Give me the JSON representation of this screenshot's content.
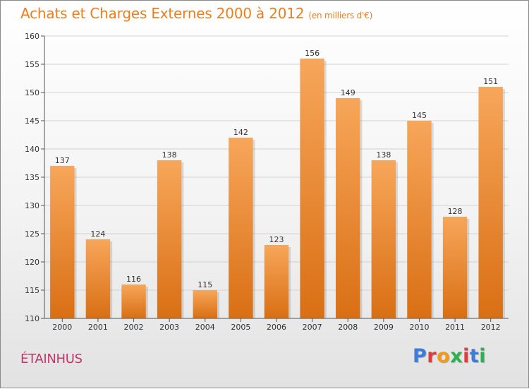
{
  "header": {
    "title": "Achats et Charges Externes 2000 à 2012",
    "unit": "(en milliers d'€)"
  },
  "footer": {
    "commune": "ÉTAINHUS",
    "logo_text": "Proxiti"
  },
  "colors": {
    "accent": "#ef7e1a",
    "bar_top": "#f7a65a",
    "bar_bottom": "#d96f14",
    "commune": "#c0386b"
  },
  "chart_data": {
    "type": "bar",
    "title": "Achats et Charges Externes 2000 à 2012",
    "subtitle": "(en milliers d'€)",
    "categories": [
      "2000",
      "2001",
      "2002",
      "2003",
      "2004",
      "2005",
      "2006",
      "2007",
      "2008",
      "2009",
      "2010",
      "2011",
      "2012"
    ],
    "values": [
      137,
      124,
      116,
      138,
      115,
      142,
      123,
      156,
      149,
      138,
      145,
      128,
      151
    ],
    "ylim": [
      110,
      160
    ],
    "yticks": [
      110,
      115,
      120,
      125,
      130,
      135,
      140,
      145,
      150,
      155,
      160
    ],
    "grid": true,
    "xlabel": "",
    "ylabel": ""
  }
}
